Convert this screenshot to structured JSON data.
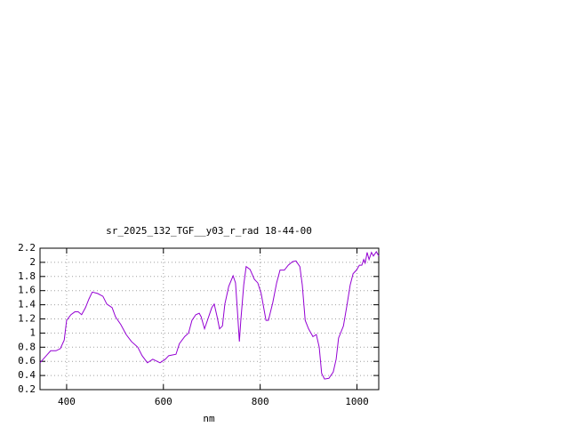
{
  "chart_data": {
    "type": "line",
    "title": "sr_2025_132_TGF__y03_r_rad 18-44-00",
    "x_label": "nm",
    "x": [
      345,
      358,
      367,
      378,
      387,
      395,
      400,
      409,
      417,
      424,
      431,
      439,
      446,
      453,
      464,
      475,
      483,
      494,
      501,
      512,
      523,
      534,
      547,
      556,
      567,
      578,
      593,
      604,
      611,
      626,
      633,
      644,
      652,
      659,
      667,
      674,
      678,
      685,
      692,
      700,
      705,
      711,
      716,
      722,
      727,
      735,
      744,
      749,
      753,
      757,
      760,
      766,
      771,
      779,
      788,
      795,
      802,
      812,
      817,
      826,
      834,
      841,
      850,
      858,
      867,
      874,
      882,
      887,
      893,
      900,
      909,
      916,
      922,
      927,
      933,
      942,
      951,
      957,
      962,
      972,
      979,
      986,
      992,
      999,
      1005,
      1010,
      1014,
      1017,
      1021,
      1025,
      1030,
      1034,
      1040,
      1045
    ],
    "series": [
      {
        "color": "#9400d3",
        "values": [
          0.58,
          0.68,
          0.75,
          0.75,
          0.78,
          0.9,
          1.18,
          1.26,
          1.3,
          1.3,
          1.26,
          1.36,
          1.48,
          1.58,
          1.56,
          1.52,
          1.41,
          1.36,
          1.23,
          1.12,
          0.98,
          0.88,
          0.8,
          0.68,
          0.58,
          0.63,
          0.58,
          0.63,
          0.68,
          0.7,
          0.85,
          0.95,
          1.0,
          1.18,
          1.26,
          1.28,
          1.23,
          1.06,
          1.2,
          1.36,
          1.41,
          1.23,
          1.06,
          1.1,
          1.41,
          1.66,
          1.81,
          1.71,
          1.31,
          0.88,
          1.18,
          1.68,
          1.94,
          1.9,
          1.76,
          1.71,
          1.56,
          1.18,
          1.18,
          1.43,
          1.71,
          1.89,
          1.89,
          1.96,
          2.01,
          2.02,
          1.94,
          1.68,
          1.18,
          1.06,
          0.95,
          0.98,
          0.8,
          0.43,
          0.35,
          0.36,
          0.45,
          0.63,
          0.93,
          1.1,
          1.38,
          1.68,
          1.84,
          1.89,
          1.96,
          1.96,
          2.04,
          1.99,
          2.14,
          2.04,
          2.14,
          2.09,
          2.15,
          2.09
        ]
      }
    ],
    "xlim": [
      345,
      1045
    ],
    "ylim": [
      0.2,
      2.2
    ],
    "xticks": [
      400,
      600,
      800,
      1000
    ],
    "yticks": [
      0.2,
      0.4,
      0.6,
      0.8,
      1,
      1.2,
      1.4,
      1.6,
      1.8,
      2,
      2.2
    ],
    "grid": true
  }
}
